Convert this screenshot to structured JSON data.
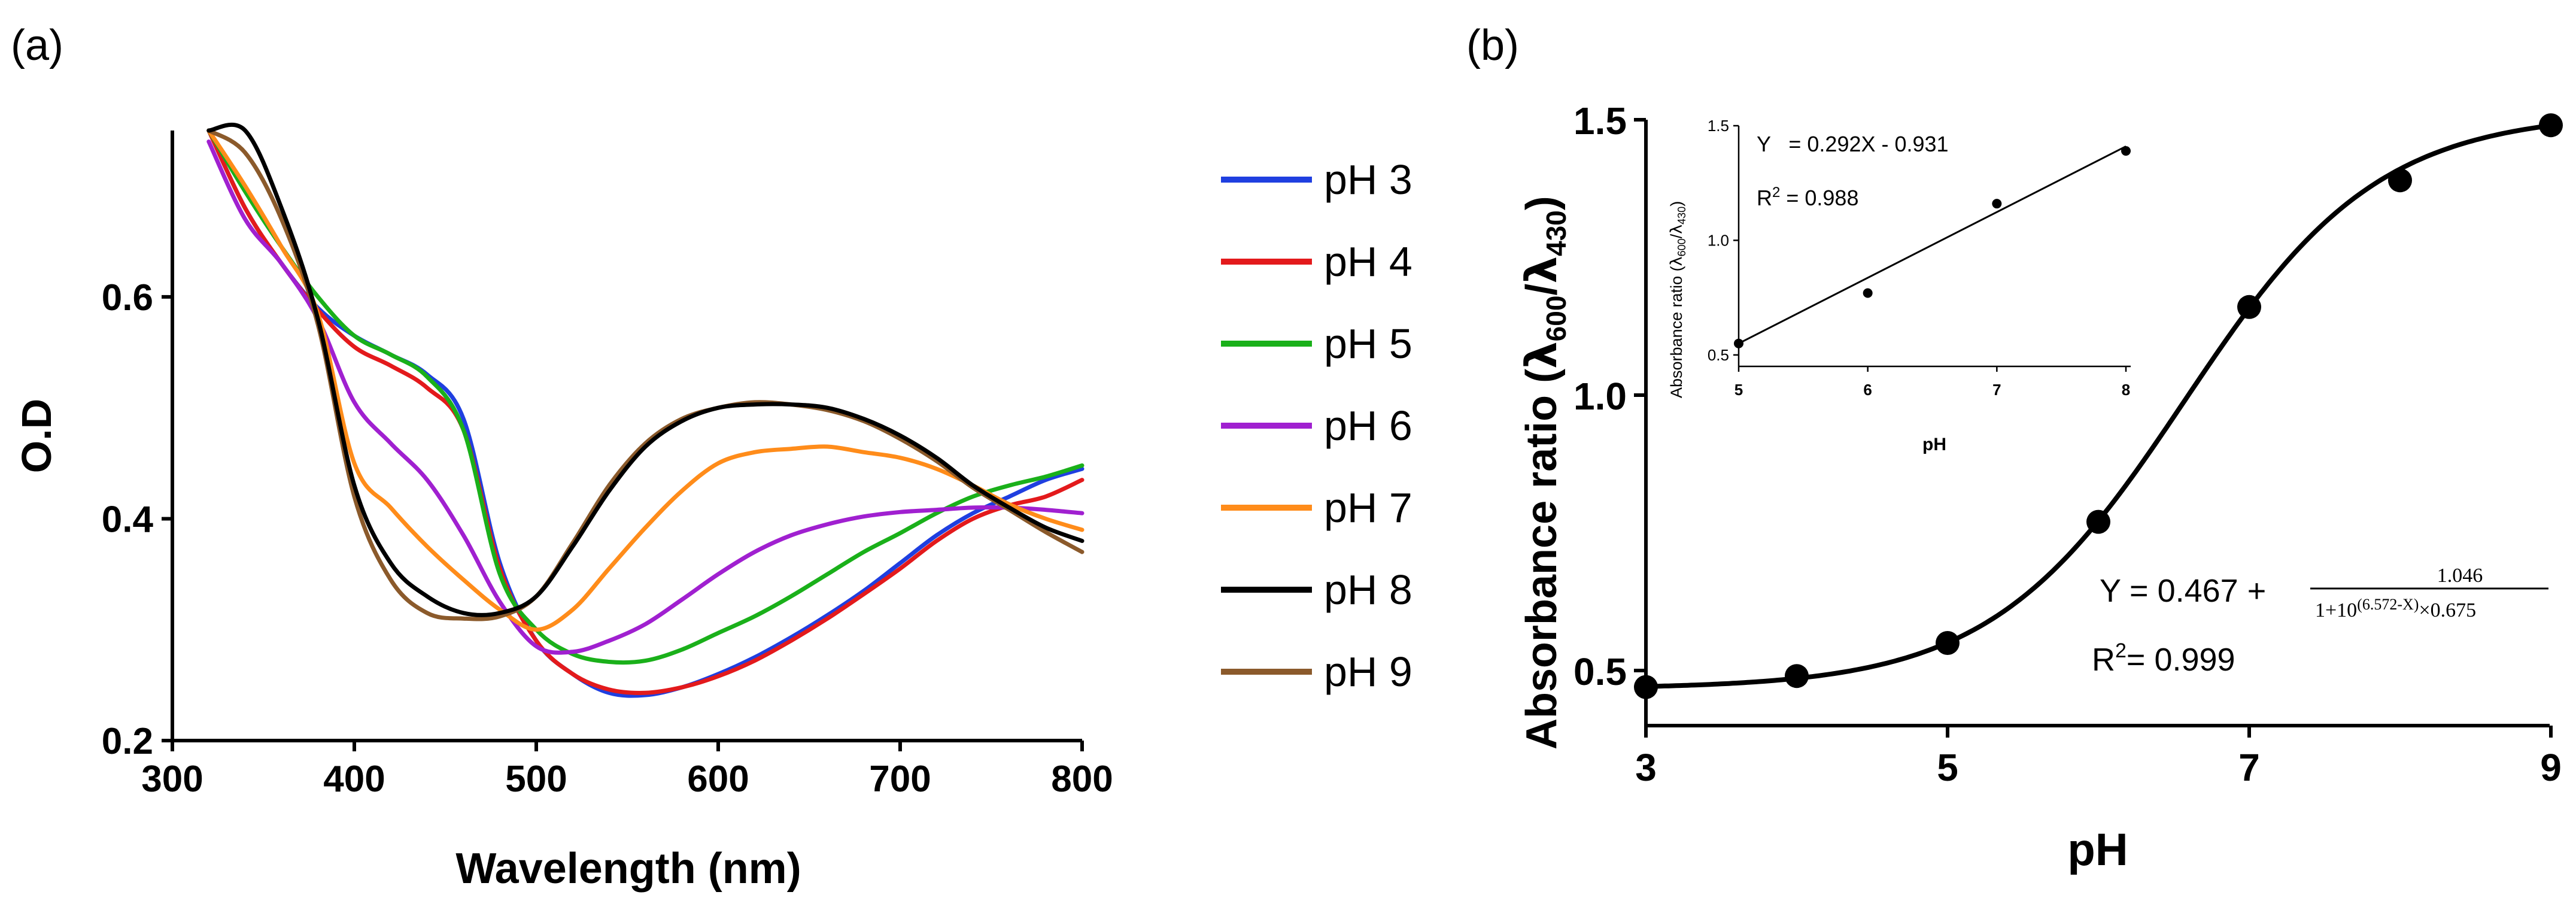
{
  "chart_data": [
    {
      "panel": "(a)",
      "type": "line",
      "xlabel": "Wavelength (nm)",
      "ylabel": "O.D",
      "xlim": [
        300,
        800
      ],
      "ylim": [
        0.2,
        0.75
      ],
      "xticks": [
        300,
        400,
        500,
        600,
        700,
        800
      ],
      "xtick_labels": [
        "300",
        "400",
        "500",
        "600",
        "700",
        "800"
      ],
      "yticks": [
        0.2,
        0.4,
        0.6
      ],
      "ytick_labels": [
        "0.2",
        "0.4",
        "0.6"
      ],
      "x": [
        320,
        340,
        360,
        380,
        400,
        420,
        440,
        460,
        480,
        500,
        520,
        540,
        560,
        580,
        600,
        620,
        640,
        660,
        680,
        700,
        720,
        740,
        760,
        780,
        800
      ],
      "series": [
        {
          "name": "pH 3",
          "color": "#1f3fe0",
          "values": [
            0.75,
            0.68,
            0.63,
            0.59,
            0.565,
            0.548,
            0.53,
            0.49,
            0.36,
            0.29,
            0.26,
            0.243,
            0.241,
            0.248,
            0.26,
            0.275,
            0.293,
            0.313,
            0.335,
            0.36,
            0.385,
            0.405,
            0.42,
            0.435,
            0.445
          ]
        },
        {
          "name": "pH 4",
          "color": "#e31a1c",
          "values": [
            0.75,
            0.68,
            0.63,
            0.588,
            0.555,
            0.538,
            0.518,
            0.48,
            0.355,
            0.29,
            0.26,
            0.246,
            0.243,
            0.248,
            0.258,
            0.272,
            0.29,
            0.31,
            0.332,
            0.355,
            0.38,
            0.4,
            0.412,
            0.42,
            0.435
          ]
        },
        {
          "name": "pH 5",
          "color": "#1ab01a",
          "values": [
            0.75,
            0.695,
            0.645,
            0.6,
            0.565,
            0.548,
            0.528,
            0.48,
            0.35,
            0.3,
            0.278,
            0.271,
            0.272,
            0.282,
            0.297,
            0.312,
            0.33,
            0.35,
            0.37,
            0.387,
            0.405,
            0.42,
            0.43,
            0.438,
            0.448
          ]
        },
        {
          "name": "pH 6",
          "color": "#a020d0",
          "values": [
            0.74,
            0.67,
            0.63,
            0.58,
            0.505,
            0.468,
            0.435,
            0.385,
            0.325,
            0.285,
            0.28,
            0.29,
            0.305,
            0.327,
            0.35,
            0.37,
            0.385,
            0.395,
            0.402,
            0.406,
            0.408,
            0.41,
            0.41,
            0.408,
            0.405
          ]
        },
        {
          "name": "pH 7",
          "color": "#ff8c1a",
          "values": [
            0.75,
            0.7,
            0.645,
            0.585,
            0.45,
            0.41,
            0.375,
            0.345,
            0.318,
            0.3,
            0.318,
            0.355,
            0.392,
            0.425,
            0.45,
            0.46,
            0.463,
            0.465,
            0.46,
            0.455,
            0.445,
            0.43,
            0.413,
            0.4,
            0.39
          ]
        },
        {
          "name": "pH 8",
          "color": "#000000",
          "values": [
            0.75,
            0.75,
            0.68,
            0.58,
            0.43,
            0.36,
            0.33,
            0.315,
            0.315,
            0.33,
            0.375,
            0.425,
            0.465,
            0.488,
            0.5,
            0.503,
            0.503,
            0.5,
            0.49,
            0.475,
            0.455,
            0.43,
            0.41,
            0.392,
            0.38
          ]
        },
        {
          "name": "pH 9",
          "color": "#8b5a2b",
          "values": [
            0.75,
            0.73,
            0.67,
            0.575,
            0.42,
            0.345,
            0.315,
            0.31,
            0.312,
            0.33,
            0.378,
            0.43,
            0.468,
            0.49,
            0.5,
            0.505,
            0.503,
            0.498,
            0.488,
            0.472,
            0.452,
            0.428,
            0.408,
            0.388,
            0.37
          ]
        }
      ]
    },
    {
      "panel": "(b)",
      "type": "scatter",
      "xlabel": "pH",
      "ylabel": "Absorbance ratio (λ600/λ430)",
      "ylabel_main": "Absorbance ratio (",
      "ylabel_sym1": "λ",
      "ylabel_sub1": "600",
      "ylabel_sep": "/",
      "ylabel_sym2": "λ",
      "ylabel_sub2": "430",
      "ylabel_end": ")",
      "xlim": [
        3,
        9
      ],
      "ylim": [
        0.4,
        1.5
      ],
      "xticks": [
        3,
        5,
        7,
        9
      ],
      "xtick_labels": [
        "3",
        "5",
        "7",
        "9"
      ],
      "yticks": [
        0.5,
        1.0,
        1.5
      ],
      "ytick_labels": [
        "0.5",
        "1.0",
        "1.5"
      ],
      "x": [
        3,
        4,
        5,
        6,
        7,
        8,
        9
      ],
      "values": [
        0.47,
        0.49,
        0.55,
        0.77,
        1.16,
        1.39,
        1.49
      ],
      "fit": {
        "A": 0.467,
        "B": 1.046,
        "x0": 6.572,
        "k": 0.675
      },
      "equation_lhs": "Y = 0.467 + ",
      "equation_numerator": "1.046",
      "equation_denominator": "1+10",
      "equation_exponent": "(6.572-X)",
      "equation_tail": "×0.675",
      "r2_label": "R",
      "r2_sup": "2",
      "r2_value": "= 0.999"
    },
    {
      "panel": "inset",
      "type": "scatter",
      "xlabel": "pH",
      "ylabel": "Absorbance ratio (λ600/λ430)",
      "ylabel_main": "Absorbance ratio (",
      "ylabel_sym1": "λ",
      "ylabel_sub1": "600",
      "ylabel_sep": "/",
      "ylabel_sym2": "λ",
      "ylabel_sub2": "430",
      "ylabel_end": ")",
      "xlim": [
        5,
        8
      ],
      "ylim": [
        0.45,
        1.5
      ],
      "xticks": [
        5,
        6,
        7,
        8
      ],
      "xtick_labels": [
        "5",
        "6",
        "7",
        "8"
      ],
      "yticks": [
        0.5,
        1.0,
        1.5
      ],
      "ytick_labels": [
        "0.5",
        "1.0",
        "1.5"
      ],
      "x": [
        5,
        6,
        7,
        8
      ],
      "values": [
        0.55,
        0.77,
        1.16,
        1.39
      ],
      "fit": {
        "slope": 0.292,
        "intercept": -0.931
      },
      "equation_text": "Y   = 0.292X - 0.931",
      "r2_label": "R",
      "r2_sup": "2",
      "r2_value": " = 0.988"
    }
  ],
  "panel_labels": {
    "a": "(a)",
    "b": "(b)"
  }
}
